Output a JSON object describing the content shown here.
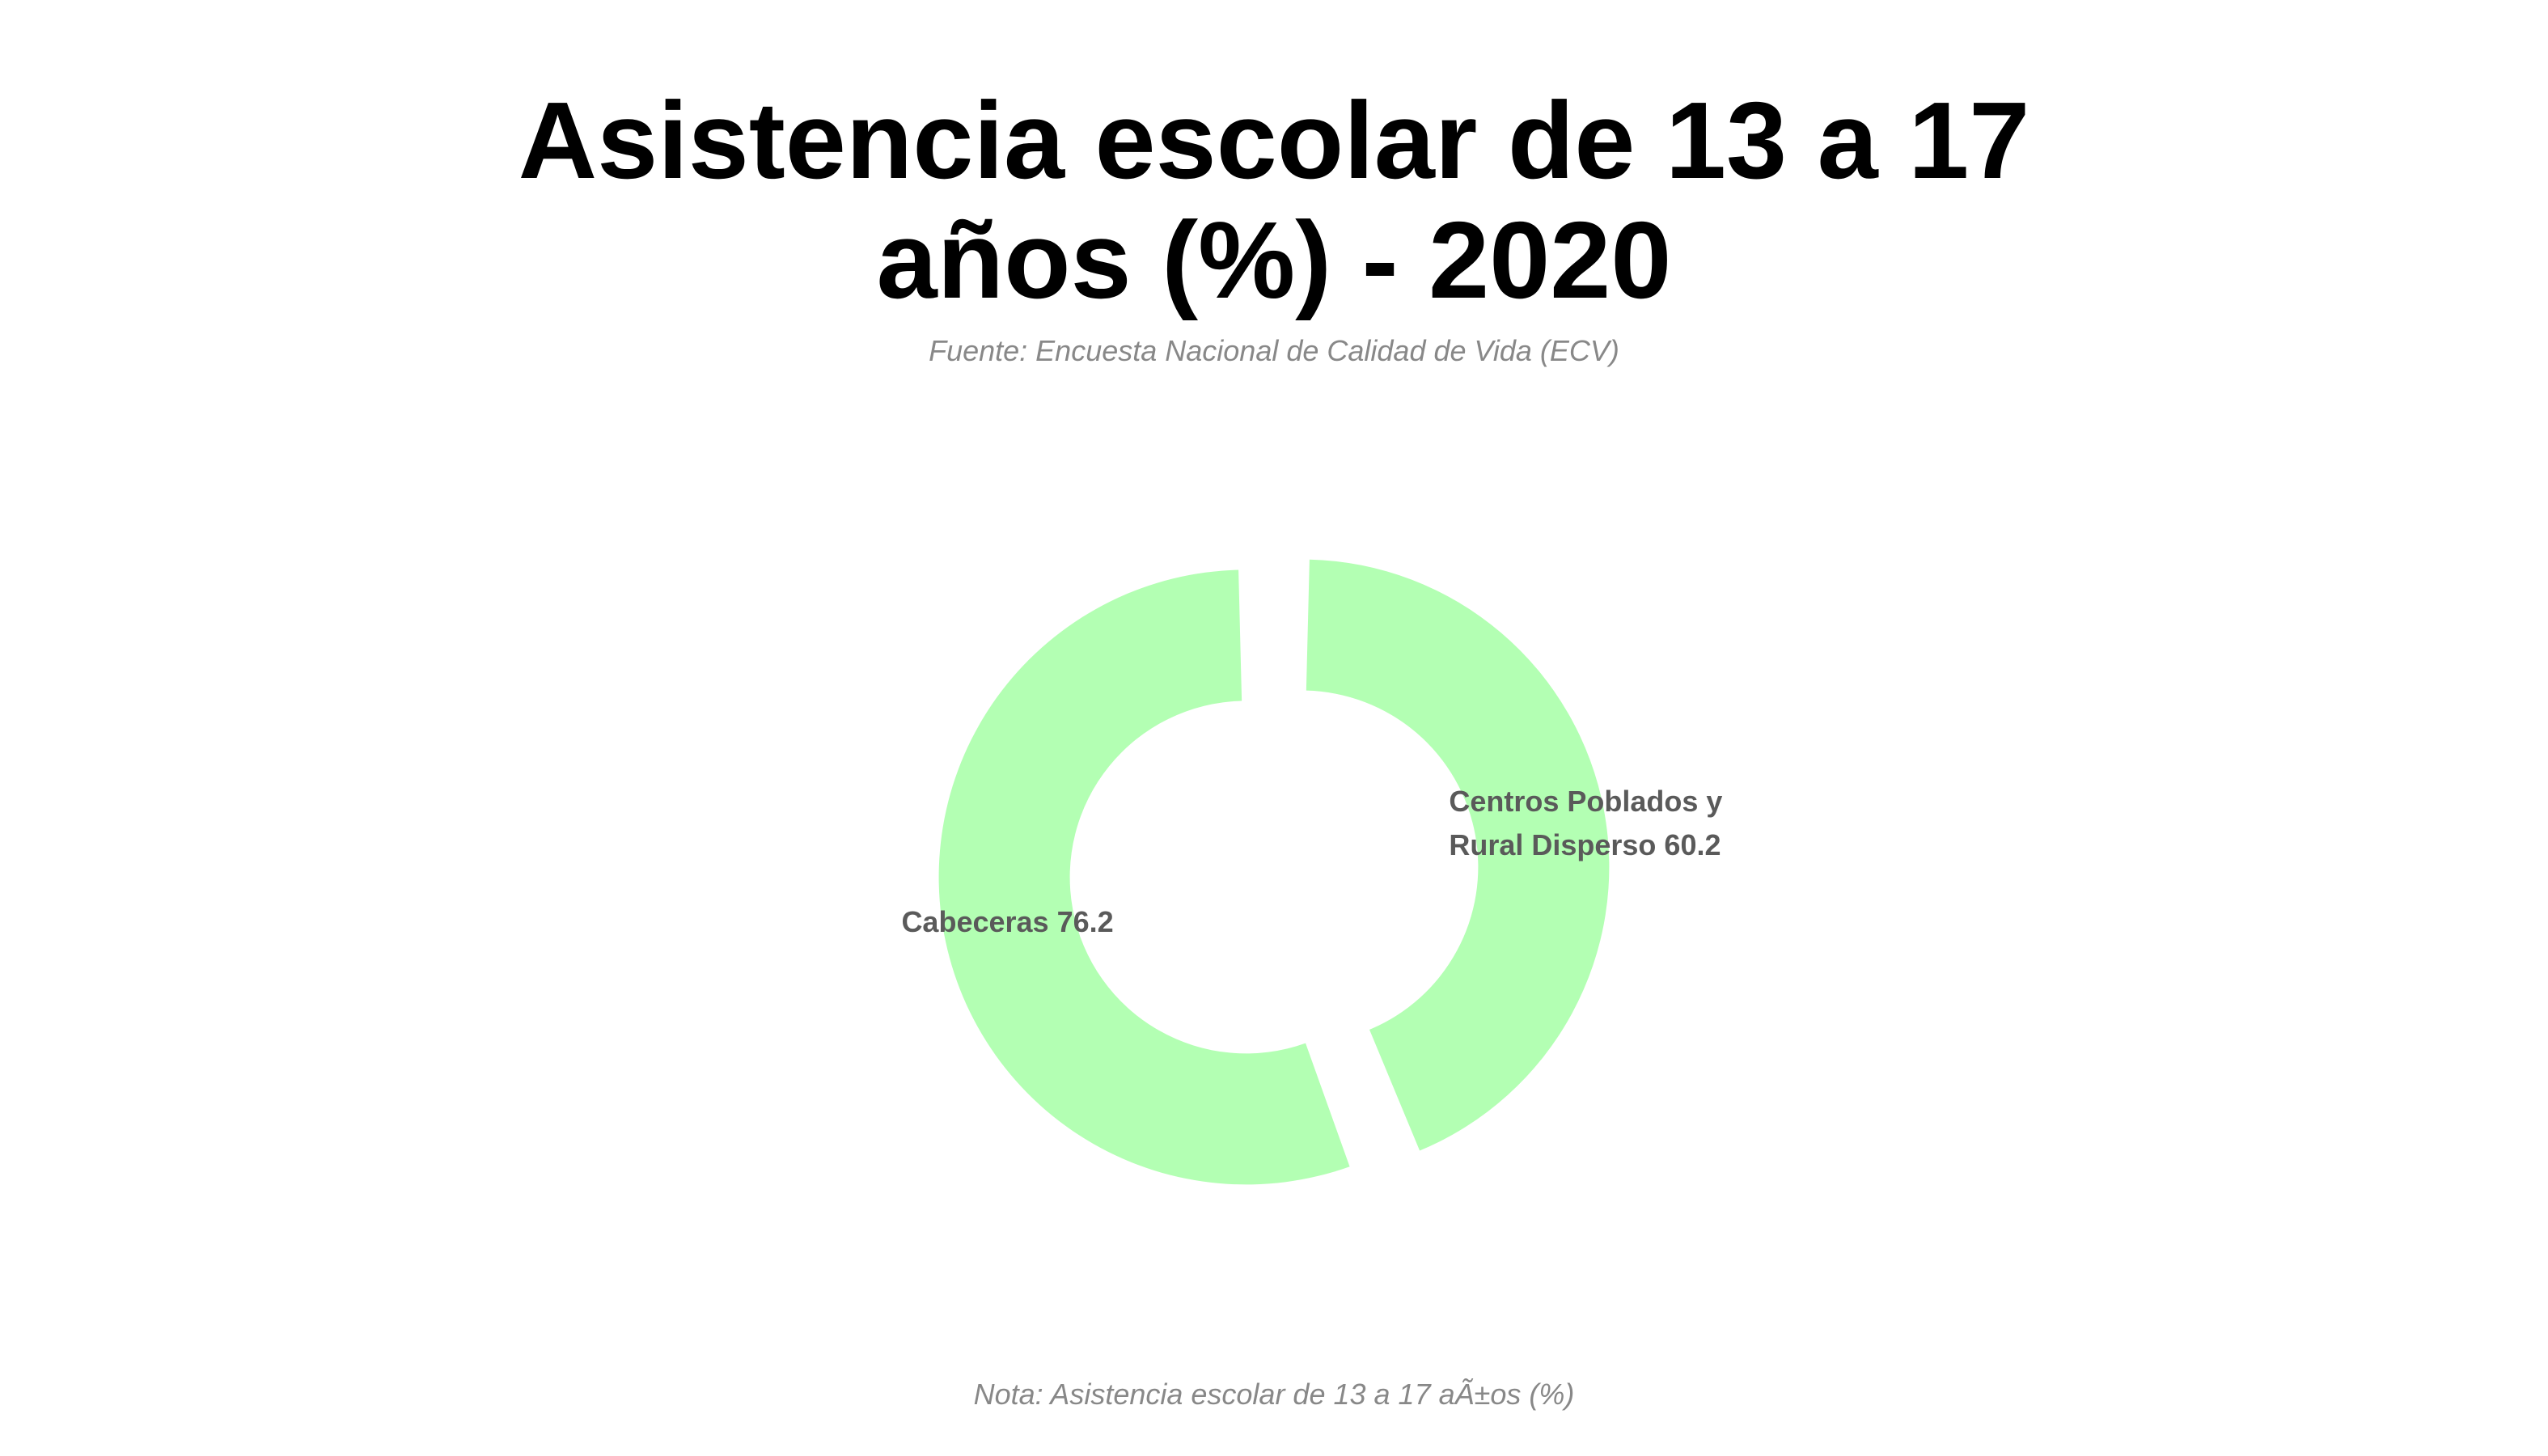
{
  "chart_data": {
    "type": "pie",
    "title_lines": [
      "Asistencia escolar de 13 a 17",
      "años (%) - 2020"
    ],
    "subtitle": "Fuente: Encuesta Nacional de Calidad de Vida (ECV)",
    "note": "Nota: Asistencia escolar de 13 a 17 aÃ±os (%)",
    "slice_color": "#b3ffb3",
    "slices": [
      {
        "category": "Cabeceras",
        "value": 76.2,
        "label_lines": [
          "Cabeceras 76.2"
        ]
      },
      {
        "category": "Centros Poblados y Rural Disperso",
        "value": 60.2,
        "label_lines": [
          "Centros Poblados y",
          "Rural Disperso 60.2"
        ]
      }
    ]
  }
}
